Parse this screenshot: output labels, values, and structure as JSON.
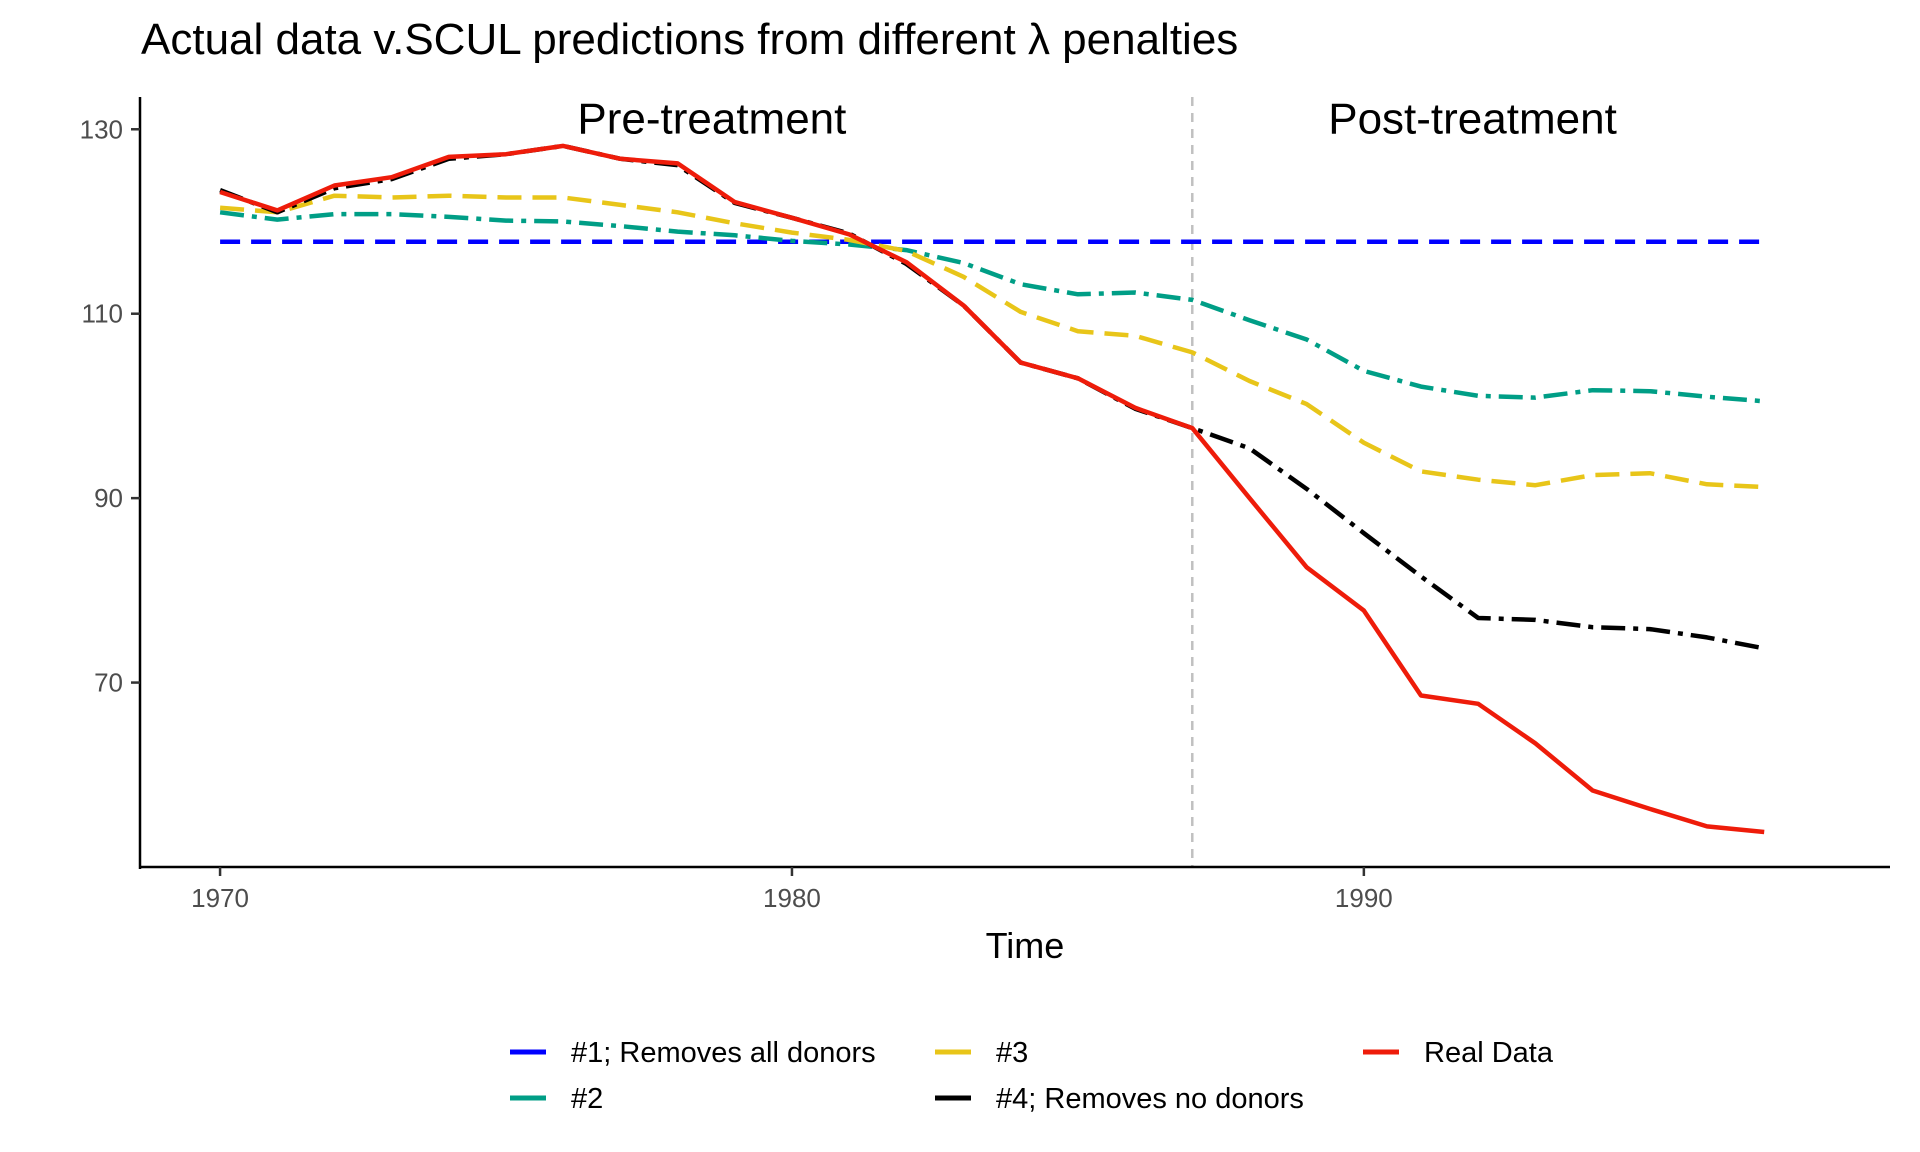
{
  "chart_data": {
    "type": "line",
    "title": "Actual data v.SCUL predictions from different λ penalties",
    "xlabel": "Time",
    "ylabel": "",
    "xlim": [
      1968.6,
      1999.2
    ],
    "ylim": [
      50.0,
      133.5
    ],
    "x_ticks": [
      1970,
      1980,
      1990
    ],
    "y_ticks": [
      70,
      90,
      110,
      130
    ],
    "x_tick_labels": [
      "1970",
      "1980",
      "1990"
    ],
    "y_tick_labels": [
      "70",
      "90",
      "110",
      "130"
    ],
    "grid": false,
    "legend_position": "bottom",
    "treatment_year": 1987,
    "annotations": [
      {
        "label": "Pre-treatment",
        "x": 1978.6,
        "y": 130.0
      },
      {
        "label": "Post-treatment",
        "x": 1991.9,
        "y": 130.0
      }
    ],
    "x": [
      1970,
      1971,
      1972,
      1973,
      1974,
      1975,
      1976,
      1977,
      1978,
      1979,
      1980,
      1981,
      1982,
      1983,
      1984,
      1985,
      1986,
      1987,
      1988,
      1989,
      1990,
      1991,
      1992,
      1993,
      1994,
      1995,
      1996,
      1997
    ],
    "series": [
      {
        "name": "#1; Removes all donors",
        "color": "#0000ff",
        "dash": "20 11",
        "values": [
          117.8,
          117.8,
          117.8,
          117.8,
          117.8,
          117.8,
          117.8,
          117.8,
          117.8,
          117.8,
          117.8,
          117.8,
          117.8,
          117.8,
          117.8,
          117.8,
          117.8,
          117.8,
          117.8,
          117.8,
          117.8,
          117.8,
          117.8,
          117.8,
          117.8,
          117.8,
          117.8,
          117.8
        ]
      },
      {
        "name": "#2",
        "color": "#009e86",
        "dash": "24 8 5 8",
        "values": [
          121.0,
          120.2,
          120.8,
          120.8,
          120.5,
          120.1,
          120.0,
          119.5,
          118.9,
          118.5,
          117.9,
          117.5,
          116.9,
          115.5,
          113.2,
          112.1,
          112.3,
          111.5,
          109.3,
          107.2,
          103.8,
          102.1,
          101.1,
          100.9,
          101.7,
          101.6,
          101.0,
          100.5
        ]
      },
      {
        "name": "#3",
        "color": "#e8c519",
        "dash": "24 11",
        "values": [
          121.5,
          121.0,
          122.8,
          122.6,
          122.8,
          122.6,
          122.6,
          121.8,
          121.0,
          119.8,
          118.8,
          118.0,
          116.8,
          114.0,
          110.2,
          108.1,
          107.6,
          105.8,
          102.7,
          100.2,
          96.0,
          92.9,
          92.0,
          91.4,
          92.5,
          92.7,
          91.5,
          91.2
        ]
      },
      {
        "name": "#4; Removes no donors",
        "color": "#000000",
        "dash": "24 8 5 8",
        "values": [
          123.4,
          121.0,
          123.6,
          124.6,
          126.8,
          127.3,
          128.2,
          126.8,
          126.1,
          122.0,
          120.4,
          118.7,
          115.4,
          110.9,
          104.7,
          103.0,
          99.7,
          97.6,
          95.4,
          91.0,
          86.2,
          81.5,
          77.0,
          76.8,
          76.0,
          75.8,
          74.9,
          73.7
        ]
      },
      {
        "name": "Real Data",
        "color": "#ee1c0a",
        "dash": "",
        "values": [
          123.2,
          121.2,
          123.9,
          124.8,
          127.0,
          127.3,
          128.2,
          126.8,
          126.3,
          122.1,
          120.4,
          118.6,
          115.6,
          110.9,
          104.7,
          103.0,
          99.8,
          97.6,
          90.0,
          82.5,
          77.8,
          68.6,
          67.7,
          63.4,
          58.3,
          56.3,
          54.4,
          53.8
        ]
      }
    ]
  }
}
